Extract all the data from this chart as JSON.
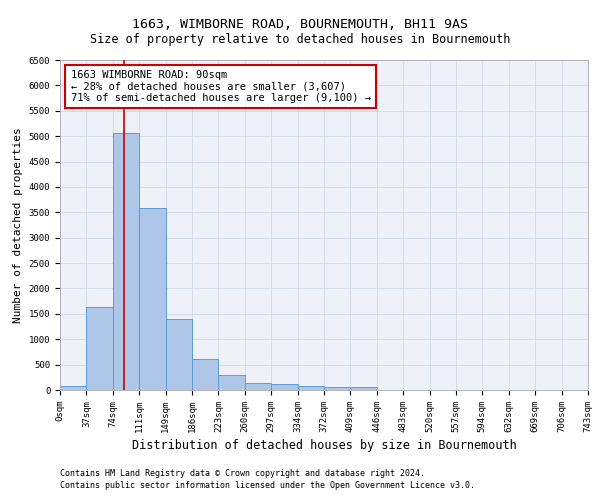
{
  "title": "1663, WIMBORNE ROAD, BOURNEMOUTH, BH11 9AS",
  "subtitle": "Size of property relative to detached houses in Bournemouth",
  "xlabel": "Distribution of detached houses by size in Bournemouth",
  "ylabel": "Number of detached properties",
  "footer_line1": "Contains HM Land Registry data © Crown copyright and database right 2024.",
  "footer_line2": "Contains public sector information licensed under the Open Government Licence v3.0.",
  "bin_labels": [
    "0sqm",
    "37sqm",
    "74sqm",
    "111sqm",
    "149sqm",
    "186sqm",
    "223sqm",
    "260sqm",
    "297sqm",
    "334sqm",
    "372sqm",
    "409sqm",
    "446sqm",
    "483sqm",
    "520sqm",
    "557sqm",
    "594sqm",
    "632sqm",
    "669sqm",
    "706sqm",
    "743sqm"
  ],
  "bar_heights": [
    75,
    1630,
    5060,
    3580,
    1400,
    620,
    290,
    145,
    110,
    75,
    55,
    55,
    0,
    0,
    0,
    0,
    0,
    0,
    0,
    0
  ],
  "bar_color": "#aec6e8",
  "bar_edge_color": "#5b9bd5",
  "grid_color": "#d0d8e8",
  "bg_color": "#eef2f8",
  "property_line_label": "1663 WIMBORNE ROAD: 90sqm",
  "annotation_line1": "← 28% of detached houses are smaller (3,607)",
  "annotation_line2": "71% of semi-detached houses are larger (9,100) →",
  "annotation_box_color": "#ffffff",
  "annotation_box_edge": "#cc0000",
  "vline_color": "#cc0000",
  "ylim": [
    0,
    6500
  ],
  "yticks": [
    0,
    500,
    1000,
    1500,
    2000,
    2500,
    3000,
    3500,
    4000,
    4500,
    5000,
    5500,
    6000,
    6500
  ],
  "title_fontsize": 9.5,
  "subtitle_fontsize": 8.5,
  "ylabel_fontsize": 8,
  "xlabel_fontsize": 8.5,
  "tick_fontsize": 6.5,
  "annotation_fontsize": 7.5,
  "footer_fontsize": 6
}
